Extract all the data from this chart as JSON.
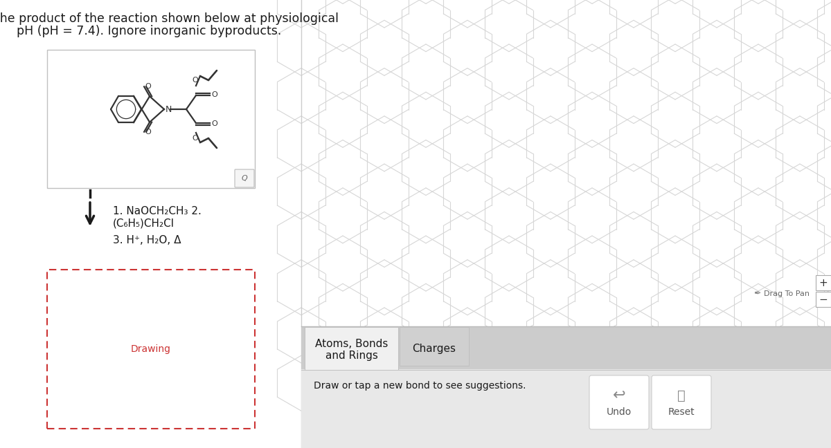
{
  "title_line1": "Draw the product of the reaction shown below at physiological",
  "title_line2": "pH (pH = 7.4). Ignore inorganic byproducts.",
  "title_fontsize": 12.5,
  "title_color": "#1a1a1a",
  "bg_color": "#ffffff",
  "reagents_line1": "1. NaOCH₂CH₃ 2.",
  "reagents_line2": "(C₆H₅)CH₂Cl",
  "reagents_line3": "3. H⁺, H₂O, Δ",
  "drawing_label": "Drawing",
  "drawing_label_color": "#cc3333",
  "hex_color": "#d8d8d8",
  "tab_active_text1": "Atoms, Bonds",
  "tab_active_text2": "and Rings",
  "tab_inactive": "Charges",
  "tab_active_bg": "#f0f0f0",
  "tab_inactive_bg": "#d0d0d0",
  "toolbar_bg": "#cccccc",
  "bottom_bar_bg": "#e8e8e8",
  "bottom_text": "Draw or tap a new bond to see suggestions.",
  "drag_to_pan": "Drag To Pan",
  "undo_label": "Undo",
  "reset_label": "Reset",
  "font_size_reagents": 11,
  "font_size_bottom": 10,
  "font_size_tabs": 11,
  "mol_col": "#333333",
  "mol_lw": 1.6
}
